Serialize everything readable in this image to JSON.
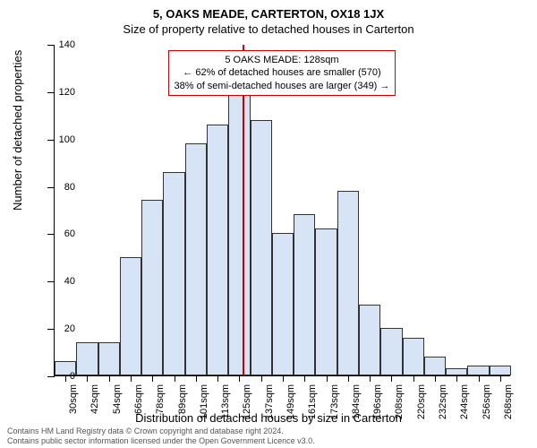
{
  "title": "5, OAKS MEADE, CARTERTON, OX18 1JX",
  "subtitle": "Size of property relative to detached houses in Carterton",
  "y_axis_title": "Number of detached properties",
  "x_axis_title": "Distribution of detached houses by size in Carterton",
  "chart": {
    "type": "histogram",
    "bar_color": "#d6e4f5",
    "bar_border_color": "#333333",
    "background_color": "#ffffff",
    "marker_color": "#cc0000",
    "marker_value": 128,
    "y_max": 140,
    "y_tick_step": 20,
    "x_min": 24,
    "x_max": 276,
    "bin_width": 12,
    "label_fontsize": 11,
    "bins": [
      {
        "label": "30sqm",
        "start": 24,
        "count": 6
      },
      {
        "label": "42sqm",
        "start": 36,
        "count": 14
      },
      {
        "label": "54sqm",
        "start": 48,
        "count": 14
      },
      {
        "label": "66sqm",
        "start": 60,
        "count": 50
      },
      {
        "label": "78sqm",
        "start": 72,
        "count": 74
      },
      {
        "label": "89sqm",
        "start": 84,
        "count": 86
      },
      {
        "label": "101sqm",
        "start": 96,
        "count": 98
      },
      {
        "label": "113sqm",
        "start": 108,
        "count": 106
      },
      {
        "label": "125sqm",
        "start": 120,
        "count": 122
      },
      {
        "label": "137sqm",
        "start": 132,
        "count": 108
      },
      {
        "label": "149sqm",
        "start": 144,
        "count": 60
      },
      {
        "label": "161sqm",
        "start": 156,
        "count": 68
      },
      {
        "label": "173sqm",
        "start": 168,
        "count": 62
      },
      {
        "label": "184sqm",
        "start": 180,
        "count": 78
      },
      {
        "label": "196sqm",
        "start": 192,
        "count": 30
      },
      {
        "label": "208sqm",
        "start": 204,
        "count": 20
      },
      {
        "label": "220sqm",
        "start": 216,
        "count": 16
      },
      {
        "label": "232sqm",
        "start": 228,
        "count": 8
      },
      {
        "label": "244sqm",
        "start": 240,
        "count": 3
      },
      {
        "label": "256sqm",
        "start": 252,
        "count": 4
      },
      {
        "label": "268sqm",
        "start": 264,
        "count": 4
      }
    ]
  },
  "annotation": {
    "line1": "5 OAKS MEADE: 128sqm",
    "line2": "← 62% of detached houses are smaller (570)",
    "line3": "38% of semi-detached houses are larger (349) →"
  },
  "footer": {
    "line1": "Contains HM Land Registry data © Crown copyright and database right 2024.",
    "line2": "Contains public sector information licensed under the Open Government Licence v3.0."
  }
}
